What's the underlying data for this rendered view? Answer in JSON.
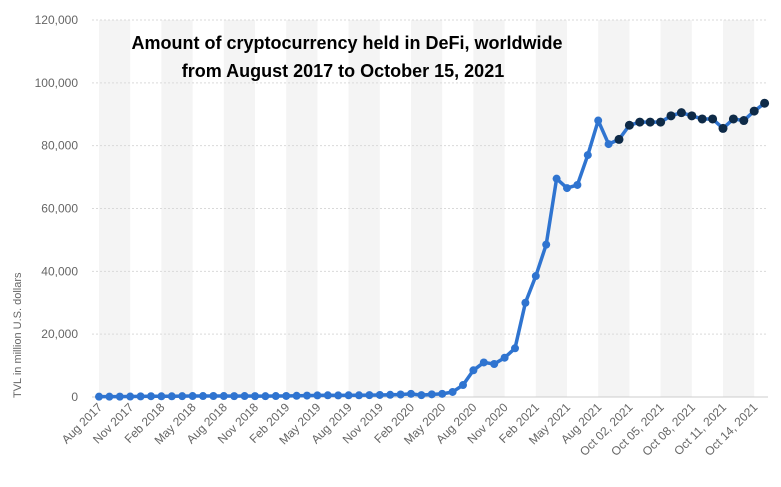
{
  "chart_data": {
    "type": "line",
    "title_line1": "Amount of cryptocurrency held in DeFi, worldwide",
    "title_line2": "from August 2017 to October 15, 2021",
    "xlabel": "",
    "ylabel": "TVL in million U.S. dollars",
    "ylim": [
      0,
      120000
    ],
    "yticks": [
      "0",
      "20,000",
      "40,000",
      "60,000",
      "80,000",
      "100,000",
      "120,000"
    ],
    "grid": true,
    "x_tick_labels": [
      "Aug 2017",
      "Nov 2017",
      "Feb 2018",
      "May 2018",
      "Aug 2018",
      "Nov 2018",
      "Feb 2019",
      "May 2019",
      "Aug 2019",
      "Nov 2019",
      "Feb 2020",
      "May 2020",
      "Aug 2020",
      "Nov 2020",
      "Feb 2021",
      "May 2021",
      "Aug 2021",
      "Oct 02, 2021",
      "Oct 05, 2021",
      "Oct 08, 2021",
      "Oct 11, 2021",
      "Oct 14, 2021"
    ],
    "colors": {
      "monthly": "#2f74d0",
      "daily": "#0e2a47"
    },
    "monthly_series": {
      "name": "",
      "color": "#2f74d0",
      "points": [
        {
          "x": "Aug 2017",
          "y": 100
        },
        {
          "x": "Sep 2017",
          "y": 110
        },
        {
          "x": "Oct 2017",
          "y": 120
        },
        {
          "x": "Nov 2017",
          "y": 150
        },
        {
          "x": "Dec 2017",
          "y": 200
        },
        {
          "x": "Jan 2018",
          "y": 250
        },
        {
          "x": "Feb 2018",
          "y": 230
        },
        {
          "x": "Mar 2018",
          "y": 220
        },
        {
          "x": "Apr 2018",
          "y": 260
        },
        {
          "x": "May 2018",
          "y": 300
        },
        {
          "x": "Jun 2018",
          "y": 300
        },
        {
          "x": "Jul 2018",
          "y": 320
        },
        {
          "x": "Aug 2018",
          "y": 300
        },
        {
          "x": "Sep 2018",
          "y": 280
        },
        {
          "x": "Oct 2018",
          "y": 300
        },
        {
          "x": "Nov 2018",
          "y": 280
        },
        {
          "x": "Dec 2018",
          "y": 270
        },
        {
          "x": "Jan 2019",
          "y": 300
        },
        {
          "x": "Feb 2019",
          "y": 330
        },
        {
          "x": "Mar 2019",
          "y": 380
        },
        {
          "x": "Apr 2019",
          "y": 450
        },
        {
          "x": "May 2019",
          "y": 500
        },
        {
          "x": "Jun 2019",
          "y": 550
        },
        {
          "x": "Jul 2019",
          "y": 500
        },
        {
          "x": "Aug 2019",
          "y": 550
        },
        {
          "x": "Sep 2019",
          "y": 550
        },
        {
          "x": "Oct 2019",
          "y": 600
        },
        {
          "x": "Nov 2019",
          "y": 650
        },
        {
          "x": "Dec 2019",
          "y": 700
        },
        {
          "x": "Jan 2020",
          "y": 800
        },
        {
          "x": "Feb 2020",
          "y": 1000
        },
        {
          "x": "Mar 2020",
          "y": 600
        },
        {
          "x": "Apr 2020",
          "y": 850
        },
        {
          "x": "May 2020",
          "y": 1000
        },
        {
          "x": "Jun 2020",
          "y": 1600
        },
        {
          "x": "Jul 2020",
          "y": 3800
        },
        {
          "x": "Aug 2020",
          "y": 8500
        },
        {
          "x": "Sep 2020",
          "y": 11000
        },
        {
          "x": "Oct 2020",
          "y": 10500
        },
        {
          "x": "Nov 2020",
          "y": 12500
        },
        {
          "x": "Dec 2020",
          "y": 15500
        },
        {
          "x": "Jan 2021",
          "y": 30000
        },
        {
          "x": "Feb 2021",
          "y": 38500
        },
        {
          "x": "Mar 2021",
          "y": 48500
        },
        {
          "x": "Apr 2021",
          "y": 69500
        },
        {
          "x": "May 2021",
          "y": 66500
        },
        {
          "x": "Jun 2021",
          "y": 67500
        },
        {
          "x": "Jul 2021",
          "y": 77000
        },
        {
          "x": "Aug 2021",
          "y": 88000
        },
        {
          "x": "Sep 2021",
          "y": 80500
        }
      ]
    },
    "daily_series": {
      "name": "",
      "color": "#0e2a47",
      "points": [
        {
          "x": "Oct 01, 2021",
          "y": 82000
        },
        {
          "x": "Oct 02, 2021",
          "y": 86500
        },
        {
          "x": "Oct 03, 2021",
          "y": 87500
        },
        {
          "x": "Oct 04, 2021",
          "y": 87500
        },
        {
          "x": "Oct 05, 2021",
          "y": 87500
        },
        {
          "x": "Oct 06, 2021",
          "y": 89500
        },
        {
          "x": "Oct 07, 2021",
          "y": 90500
        },
        {
          "x": "Oct 08, 2021",
          "y": 89500
        },
        {
          "x": "Oct 09, 2021",
          "y": 88500
        },
        {
          "x": "Oct 10, 2021",
          "y": 88500
        },
        {
          "x": "Oct 11, 2021",
          "y": 85500
        },
        {
          "x": "Oct 12, 2021",
          "y": 88500
        },
        {
          "x": "Oct 13, 2021",
          "y": 88000
        },
        {
          "x": "Oct 14, 2021",
          "y": 91000
        },
        {
          "x": "Oct 15, 2021",
          "y": 93500
        }
      ]
    }
  }
}
